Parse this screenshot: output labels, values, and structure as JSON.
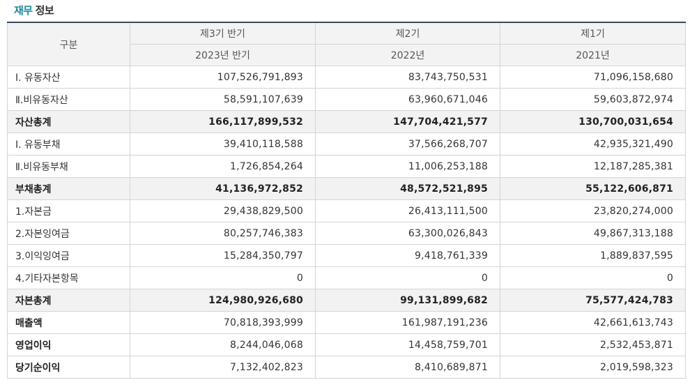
{
  "title": {
    "accent": "재무",
    "rest": "정보"
  },
  "header": {
    "row_label": "구분",
    "periods": [
      {
        "term": "제3기 반기",
        "year": "2023년 반기"
      },
      {
        "term": "제2기",
        "year": "2022년"
      },
      {
        "term": "제1기",
        "year": "2021년"
      }
    ]
  },
  "rows": [
    {
      "label": "Ⅰ. 유동자산",
      "values": [
        "107,526,791,893",
        "83,743,750,531",
        "71,096,158,680"
      ]
    },
    {
      "label": "Ⅱ.비유동자산",
      "values": [
        "58,591,107,639",
        "63,960,671,046",
        "59,603,872,974"
      ]
    },
    {
      "label": "자산총계",
      "values": [
        "166,117,899,532",
        "147,704,421,577",
        "130,700,031,654"
      ]
    },
    {
      "label": "Ⅰ. 유동부채",
      "values": [
        "39,410,118,588",
        "37,566,268,707",
        "42,935,321,490"
      ]
    },
    {
      "label": "Ⅱ.비유동부채",
      "values": [
        "1,726,854,264",
        "11,006,253,188",
        "12,187,285,381"
      ]
    },
    {
      "label": "부채총계",
      "values": [
        "41,136,972,852",
        "48,572,521,895",
        "55,122,606,871"
      ]
    },
    {
      "label": "1.자본금",
      "values": [
        "29,438,829,500",
        "26,413,111,500",
        "23,820,274,000"
      ]
    },
    {
      "label": "2.자본잉여금",
      "values": [
        "80,257,746,383",
        "63,300,026,843",
        "49,867,313,188"
      ]
    },
    {
      "label": "3.이익잉여금",
      "values": [
        "15,284,350,797",
        "9,418,761,339",
        "1,889,837,595"
      ]
    },
    {
      "label": "4.기타자본항목",
      "values": [
        "0",
        "0",
        "0"
      ]
    },
    {
      "label": "자본총계",
      "values": [
        "124,980,926,680",
        "99,131,899,682",
        "75,577,424,783"
      ]
    },
    {
      "label": "매출액",
      "values": [
        "70,818,393,999",
        "161,987,191,236",
        "42,661,613,743"
      ]
    },
    {
      "label": "영업이익",
      "values": [
        "8,244,046,068",
        "14,458,759,701",
        "2,532,453,871"
      ]
    },
    {
      "label": "당기순이익",
      "values": [
        "7,132,402,823",
        "8,410,689,871",
        "2,019,598,323"
      ]
    }
  ]
}
